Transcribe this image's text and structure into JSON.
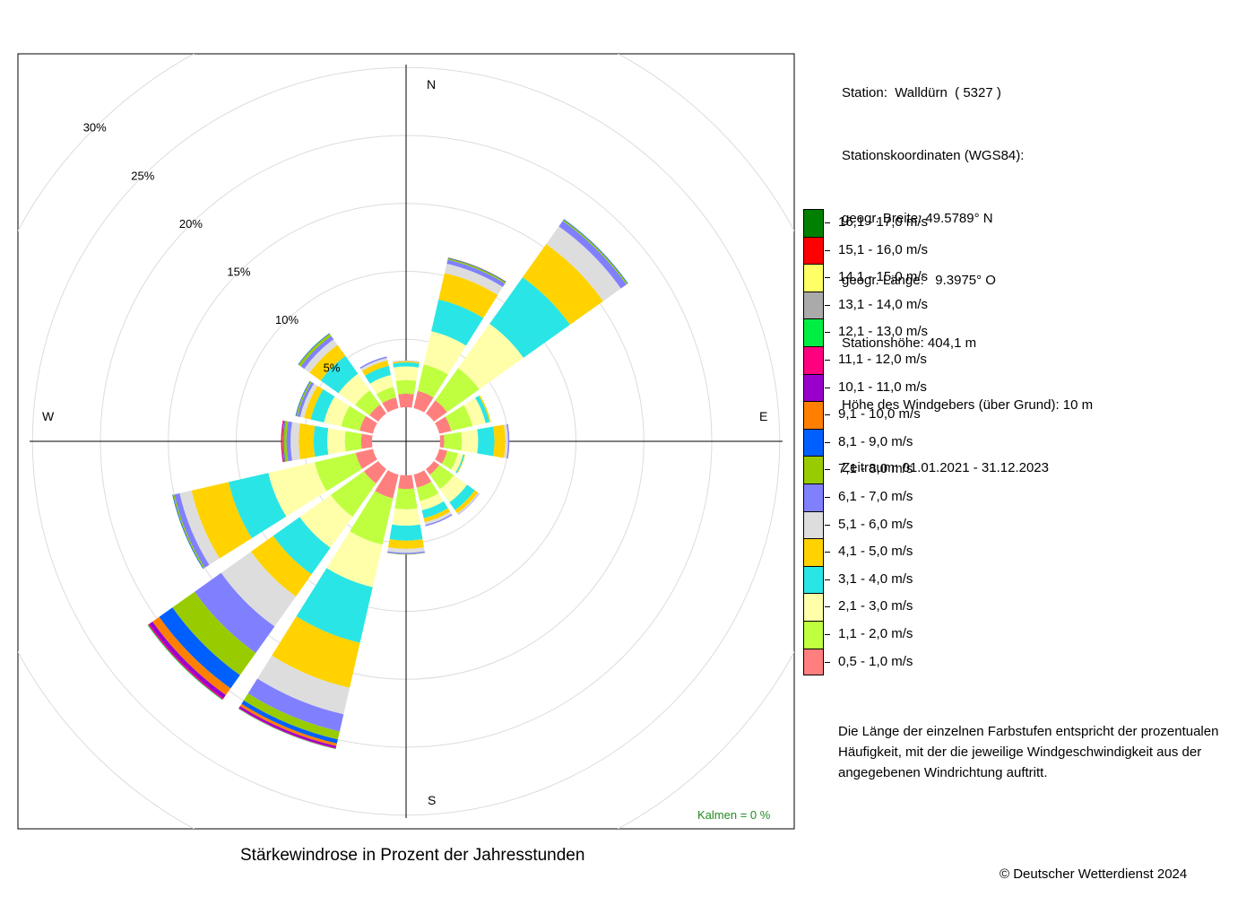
{
  "chart_data": {
    "type": "windrose",
    "title": "Stärkewindrose in Prozent der Jahresstunden",
    "directions": [
      "N",
      "NNO",
      "NO",
      "ONO",
      "O",
      "OSO",
      "SO",
      "SSO",
      "S",
      "SSW",
      "SW",
      "WSW",
      "W",
      "WNW",
      "NW",
      "NNW"
    ],
    "radial_ticks": [
      "5%",
      "10%",
      "15%",
      "20%",
      "25%",
      "30%"
    ],
    "radial_range": [
      0,
      30
    ],
    "compass_labels": {
      "n": "N",
      "e": "E",
      "s": "S",
      "w": "W"
    },
    "calm": "Kalmen  =  0 %",
    "speed_classes": [
      {
        "label": "0,5 - 1,0 m/s",
        "color": "#FF7F7F"
      },
      {
        "label": "1,1 - 2,0 m/s",
        "color": "#BFFF3F"
      },
      {
        "label": "2,1 - 3,0 m/s",
        "color": "#FFFFAA"
      },
      {
        "label": "3,1 - 4,0 m/s",
        "color": "#2AE5E5"
      },
      {
        "label": "4,1 - 5,0 m/s",
        "color": "#FFD200"
      },
      {
        "label": "5,1 - 6,0 m/s",
        "color": "#DDDDDD"
      },
      {
        "label": "6,1 - 7,0 m/s",
        "color": "#8080FF"
      },
      {
        "label": "7,1 - 8,0 m/s",
        "color": "#99CC00"
      },
      {
        "label": "8,1 - 9,0 m/s",
        "color": "#0060FF"
      },
      {
        "label": "9,1 - 10,0 m/s",
        "color": "#FF8000"
      },
      {
        "label": "10,1 - 11,0 m/s",
        "color": "#9900CC"
      },
      {
        "label": "11,1 - 12,0 m/s",
        "color": "#FF007F"
      },
      {
        "label": "12,1 - 13,0 m/s",
        "color": "#00EE44"
      },
      {
        "label": "13,1 - 14,0 m/s",
        "color": "#AAAAAA"
      },
      {
        "label": "14,1 - 15,0 m/s",
        "color": "#FFFF66"
      },
      {
        "label": "15,1 - 16,0 m/s",
        "color": "#FF0000"
      },
      {
        "label": "16,1 - 17,0 m/s",
        "color": "#008000"
      }
    ],
    "frequencies_percent": [
      [
        1.0,
        1.0,
        1.0,
        0.3,
        0.1,
        0.03,
        0.02,
        0,
        0,
        0,
        0,
        0,
        0,
        0,
        0,
        0,
        0
      ],
      [
        1.3,
        2.0,
        2.5,
        2.4,
        2.0,
        0.7,
        0.3,
        0.1,
        0.05,
        0.02,
        0,
        0,
        0,
        0,
        0,
        0,
        0
      ],
      [
        1.2,
        2.9,
        4.0,
        4.2,
        3.0,
        1.6,
        0.5,
        0.1,
        0.05,
        0,
        0,
        0,
        0,
        0,
        0,
        0,
        0
      ],
      [
        0.9,
        1.6,
        1.0,
        0.3,
        0.1,
        0,
        0,
        0,
        0,
        0,
        0,
        0,
        0,
        0,
        0,
        0,
        0
      ],
      [
        0.3,
        1.3,
        1.2,
        1.2,
        0.8,
        0.2,
        0.1,
        0,
        0,
        0,
        0,
        0,
        0,
        0,
        0,
        0,
        0
      ],
      [
        0.6,
        0.8,
        0.4,
        0.1,
        0.05,
        0,
        0,
        0,
        0,
        0,
        0,
        0,
        0,
        0,
        0,
        0,
        0
      ],
      [
        0.5,
        1.3,
        1.2,
        0.7,
        0.3,
        0.1,
        0.03,
        0,
        0,
        0,
        0,
        0,
        0,
        0,
        0,
        0,
        0
      ],
      [
        1.0,
        1.0,
        0.7,
        0.6,
        0.3,
        0.2,
        0.1,
        0,
        0,
        0,
        0,
        0,
        0,
        0,
        0,
        0,
        0
      ],
      [
        1.0,
        1.5,
        1.2,
        1.1,
        0.6,
        0.3,
        0.1,
        0.03,
        0,
        0,
        0,
        0,
        0,
        0,
        0,
        0,
        0
      ],
      [
        1.8,
        3.5,
        3.2,
        4.2,
        3.4,
        2.0,
        1.3,
        0.6,
        0.3,
        0.2,
        0.15,
        0.05,
        0.03,
        0,
        0,
        0,
        0
      ],
      [
        1.3,
        3.0,
        2.8,
        2.4,
        2.0,
        2.7,
        2.4,
        2.0,
        1.2,
        0.6,
        0.3,
        0.1,
        0.05,
        0,
        0,
        0,
        0
      ],
      [
        1.3,
        3.1,
        3.5,
        3.0,
        2.8,
        0.9,
        0.4,
        0.1,
        0.05,
        0,
        0,
        0,
        0,
        0,
        0,
        0,
        0
      ],
      [
        0.8,
        1.2,
        1.3,
        1.0,
        1.1,
        0.6,
        0.3,
        0.2,
        0.05,
        0.05,
        0.05,
        0.05,
        0,
        0,
        0,
        0,
        0
      ],
      [
        1.0,
        1.4,
        1.3,
        1.0,
        0.5,
        0.3,
        0.2,
        0.1,
        0.05,
        0,
        0,
        0,
        0,
        0,
        0,
        0,
        0
      ],
      [
        0.8,
        1.3,
        1.5,
        1.6,
        1.0,
        0.5,
        0.3,
        0.2,
        0.05,
        0,
        0,
        0,
        0,
        0,
        0,
        0,
        0
      ],
      [
        0.8,
        0.8,
        0.9,
        0.7,
        0.4,
        0.2,
        0.1,
        0,
        0,
        0,
        0,
        0,
        0,
        0,
        0,
        0,
        0
      ]
    ]
  },
  "station": {
    "line1": "Station:  Walldürn  ( 5327 )",
    "line2": "Stationskoordinaten (WGS84):",
    "line3": "geogr. Breite: 49.5789° N",
    "line4": "geogr. Länge:   9.3975° O",
    "line5": "Stationshöhe: 404,1 m",
    "line6": "Höhe des Windgebers (über Grund): 10 m",
    "line7": "Zeitraum: 01.01.2021 - 31.12.2023"
  },
  "note": "Die Länge der einzelnen Farbstufen entspricht der prozentualen Häufigkeit, mit der die jeweilige Windgeschwindigkeit aus der angegebenen Windrichtung auftritt.",
  "copyright": "© Deutscher Wetterdienst  2024"
}
